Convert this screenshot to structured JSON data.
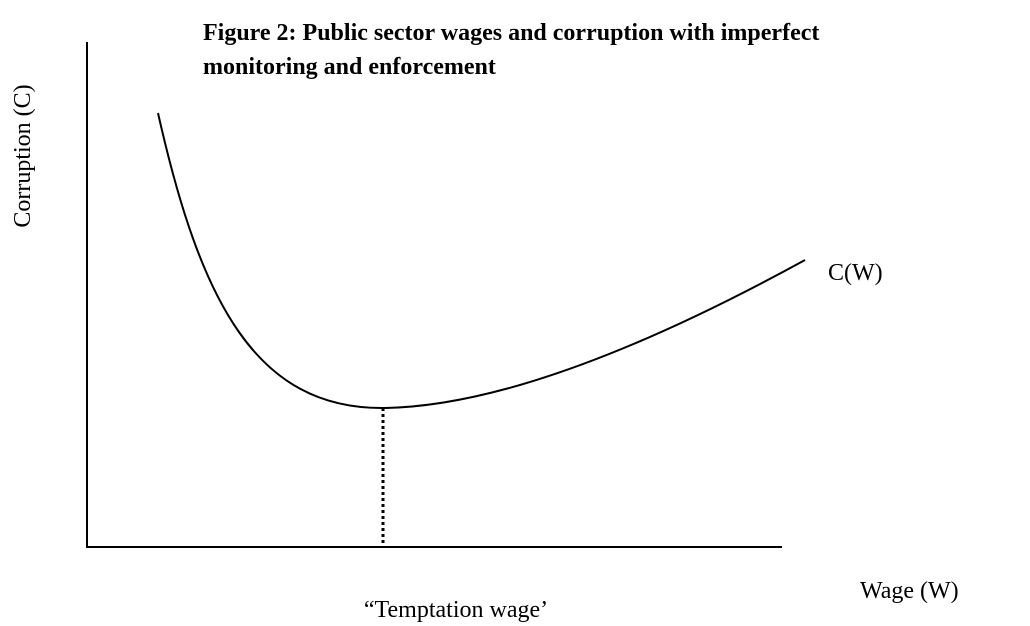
{
  "title_lines": [
    "Figure 2: Public sector wages and corruption with imperfect",
    "monitoring and enforcement"
  ],
  "y_axis_label": "Corruption (C)",
  "x_axis_label": "Wage (W)",
  "curve_label": "C(W)",
  "annotation": "“Temptation wage’"
}
